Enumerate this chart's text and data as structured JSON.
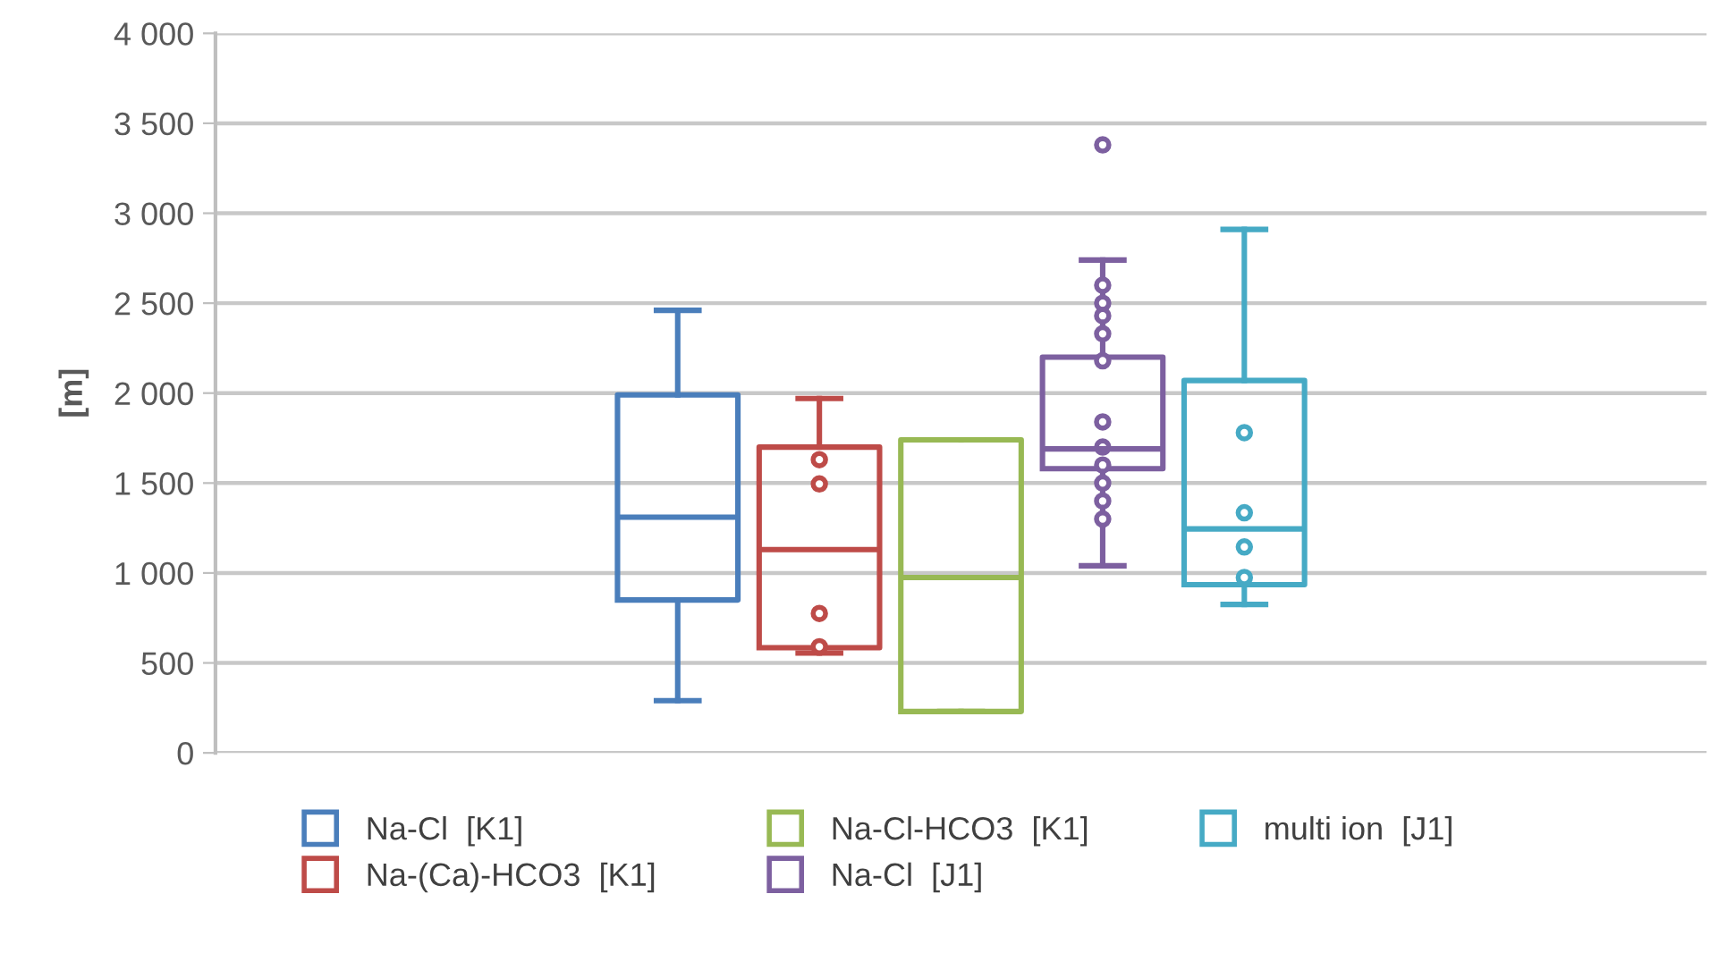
{
  "chart_data": {
    "type": "box",
    "ylabel": "[m]",
    "categories": [
      null
    ],
    "ylim": [
      0,
      4000
    ],
    "yticks": [
      0,
      {
        "value": 500,
        "label": "500"
      },
      {
        "value": 1000,
        "label": "1 000"
      },
      {
        "value": 1500,
        "label": "1 500"
      },
      {
        "value": 2000,
        "label": "2 000"
      },
      {
        "value": 2500,
        "label": "2 500"
      },
      {
        "value": 3000,
        "label": "3 000"
      },
      {
        "value": 3500,
        "label": "3 500"
      },
      {
        "value": 4000,
        "label": "4 000"
      }
    ],
    "grid": "y",
    "legend": "bottom",
    "series": [
      {
        "name": "Na-Cl  [K1]",
        "color": "#4a7ebb",
        "boxes": [
          {
            "low": 290,
            "q1": 850,
            "median": 1310,
            "q3": 1990,
            "high": 2460
          }
        ]
      },
      {
        "name": "Na-(Ca)-HCO3  [K1]",
        "color": "#be4b48",
        "boxes": [
          {
            "low": 555,
            "q1": 585,
            "median": 1130,
            "q3": 1700,
            "high": 1970,
            "outliers": [
              1630,
              1495,
              775,
              590
            ]
          }
        ]
      },
      {
        "name": "Na-Cl-HCO3  [K1]",
        "color": "#98b954",
        "boxes": [
          {
            "low": 230,
            "q1": 230,
            "median": 975,
            "q3": 1740,
            "high": 1740
          }
        ]
      },
      {
        "name": "Na-Cl  [J1]",
        "color": "#7d60a0",
        "boxes": [
          {
            "low": 1040,
            "q1": 1580,
            "median": 1690,
            "q3": 2200,
            "high": 2740,
            "outliers": [
              3380,
              2600,
              2500,
              2430,
              2330,
              2180,
              1840,
              1700,
              1600,
              1500,
              1400,
              1300
            ]
          }
        ]
      },
      {
        "name": "multi ion  [J1]",
        "color": "#46aac5",
        "boxes": [
          {
            "low": 825,
            "q1": 935,
            "median": 1245,
            "q3": 2070,
            "high": 2910,
            "outliers": [
              1780,
              1335,
              1145,
              975
            ]
          }
        ]
      }
    ]
  }
}
